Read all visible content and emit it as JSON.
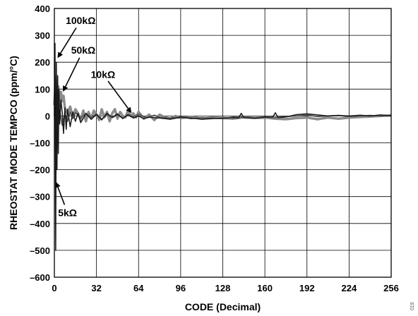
{
  "chart_data": {
    "type": "line",
    "xlabel": "CODE (Decimal)",
    "ylabel": "RHEOSTAT MODE TEMPCO (ppm/°C)",
    "xlim": [
      0,
      256
    ],
    "ylim": [
      -600,
      400
    ],
    "xticks": [
      0,
      32,
      64,
      96,
      128,
      160,
      192,
      224,
      256
    ],
    "yticks": [
      400,
      300,
      200,
      100,
      0,
      -100,
      -200,
      -300,
      -400,
      -500,
      -600
    ],
    "grid": true,
    "side_id": "019",
    "series": [
      {
        "name": "50kΩ",
        "color": "#8c8c8c",
        "width": 3.5,
        "x": [
          0,
          1,
          2,
          3,
          4,
          5,
          6,
          7,
          8,
          9,
          10,
          12,
          14,
          16,
          18,
          20,
          22,
          24,
          26,
          28,
          30,
          32,
          34,
          36,
          38,
          40,
          42,
          44,
          46,
          48,
          50,
          52,
          54,
          56,
          58,
          60,
          62,
          64,
          68,
          72,
          76,
          80,
          84,
          88,
          92,
          96,
          104,
          112,
          120,
          128,
          136,
          144,
          152,
          160,
          168,
          176,
          184,
          192,
          200,
          208,
          216,
          224,
          232,
          240,
          248,
          256
        ],
        "y": [
          40,
          140,
          60,
          110,
          40,
          90,
          55,
          75,
          30,
          20,
          10,
          35,
          -5,
          25,
          10,
          -15,
          20,
          -20,
          15,
          -10,
          20,
          5,
          -15,
          25,
          -5,
          15,
          -20,
          10,
          25,
          -10,
          15,
          0,
          -5,
          20,
          0,
          10,
          -5,
          15,
          -10,
          5,
          -15,
          5,
          -5,
          -10,
          0,
          -8,
          -3,
          -10,
          -6,
          -8,
          -10,
          -5,
          -8,
          -6,
          -10,
          -12,
          -8,
          -6,
          -12,
          -6,
          -10,
          -6,
          -4,
          -2,
          0,
          2
        ]
      },
      {
        "name": "10kΩ",
        "color": "#555555",
        "width": 1.8,
        "x": [
          0,
          2,
          4,
          6,
          8,
          10,
          12,
          14,
          16,
          20,
          24,
          28,
          32,
          36,
          40,
          44,
          48,
          52,
          56,
          60,
          64,
          70,
          76,
          80,
          88,
          96,
          104,
          112,
          120,
          128,
          136,
          144,
          152,
          160,
          168,
          176,
          184,
          192,
          200,
          208,
          216,
          224,
          232,
          240,
          248,
          256
        ],
        "y": [
          30,
          -30,
          20,
          -35,
          10,
          -20,
          15,
          -10,
          12,
          -8,
          10,
          -5,
          8,
          -12,
          6,
          -6,
          4,
          -8,
          5,
          -4,
          6,
          -6,
          3,
          -5,
          -8,
          -4,
          -10,
          -6,
          -8,
          -10,
          -4,
          -6,
          -8,
          -4,
          -6,
          -2,
          0,
          4,
          -2,
          0,
          2,
          -2,
          0,
          2,
          0,
          2
        ]
      },
      {
        "name": "100kΩ",
        "color": "#1a1a1a",
        "width": 1.5,
        "x": [
          0,
          0.5,
          1,
          1.5,
          2,
          2.5,
          3,
          3.5,
          4,
          5,
          6,
          7,
          8,
          9,
          10,
          12,
          14,
          16,
          18,
          20,
          24,
          28,
          32,
          36,
          40,
          44,
          48,
          52,
          56,
          60,
          64,
          68,
          72,
          80,
          88,
          96,
          104,
          112,
          120,
          128,
          136,
          140,
          142,
          144,
          148,
          152,
          160,
          166,
          168,
          170,
          176,
          184,
          192,
          200,
          208,
          216,
          224,
          232,
          240,
          248,
          256
        ],
        "y": [
          0,
          270,
          -500,
          200,
          -200,
          150,
          -140,
          100,
          -30,
          60,
          10,
          -65,
          30,
          -50,
          25,
          -40,
          15,
          -20,
          10,
          -25,
          8,
          -12,
          5,
          -15,
          10,
          -5,
          8,
          -10,
          5,
          -8,
          0,
          -10,
          -5,
          -8,
          -12,
          -5,
          -8,
          -12,
          -10,
          -8,
          -6,
          -8,
          10,
          -6,
          -6,
          -8,
          -5,
          -4,
          12,
          -6,
          -4,
          5,
          8,
          4,
          0,
          2,
          0,
          3,
          0,
          4,
          0
        ]
      }
    ],
    "annotations": [
      {
        "label": "100kΩ",
        "x": 20,
        "y": 355,
        "tx": 3,
        "ty": 220
      },
      {
        "label": "50kΩ",
        "x": 22,
        "y": 245,
        "tx": 7,
        "ty": 95
      },
      {
        "label": "10kΩ",
        "x": 37,
        "y": 155,
        "tx": 58,
        "ty": 15
      },
      {
        "label": "5kΩ",
        "x": 10,
        "y": -360,
        "tx": 1.5,
        "ty": -250
      }
    ]
  }
}
